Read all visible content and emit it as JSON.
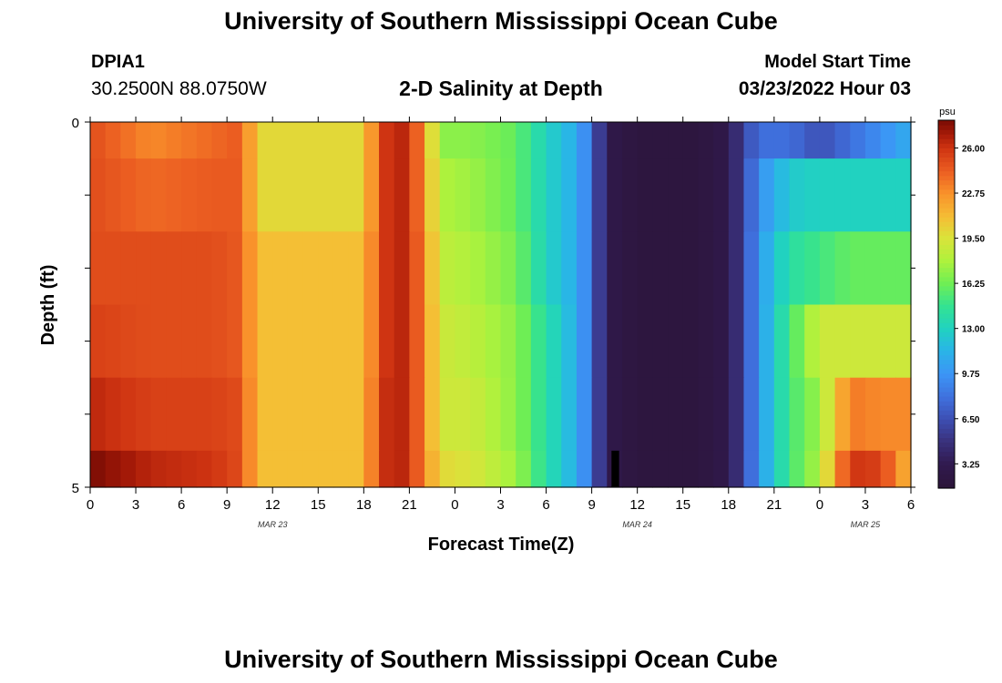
{
  "header": {
    "title": "University of Southern Mississippi Ocean Cube",
    "station": "DPIA1",
    "coords": "30.2500N  88.0750W",
    "subtitle": "2-D Salinity at Depth",
    "model_start_label": "Model Start Time",
    "model_start_value": "03/23/2022 Hour 03"
  },
  "footer": {
    "title": "University of Southern Mississippi Ocean Cube"
  },
  "chart_data": {
    "type": "heatmap",
    "xlabel": "Forecast Time(Z)",
    "ylabel": "Depth (ft)",
    "x_range_hours": [
      0,
      54
    ],
    "x_ticks": [
      "0",
      "3",
      "6",
      "9",
      "12",
      "15",
      "18",
      "21",
      "0",
      "3",
      "6",
      "9",
      "12",
      "15",
      "18",
      "21",
      "0",
      "3",
      "6"
    ],
    "date_labels": [
      {
        "label": "MAR 23",
        "hour": 12
      },
      {
        "label": "MAR 24",
        "hour": 36
      },
      {
        "label": "MAR 25",
        "hour": 51
      }
    ],
    "y_ticks": [
      "0",
      "5"
    ],
    "y_range_ft": [
      0,
      5
    ],
    "colorbar": {
      "unit": "psu",
      "range": [
        1.5,
        28.0
      ],
      "ticks": [
        "26.00",
        "22.75",
        "19.50",
        "16.25",
        "13.00",
        "9.75",
        "6.50",
        "3.25"
      ],
      "stops": [
        {
          "v": 1.5,
          "c": "#2b1438"
        },
        {
          "v": 3.25,
          "c": "#311a4f"
        },
        {
          "v": 5.0,
          "c": "#3a3380"
        },
        {
          "v": 6.5,
          "c": "#3d4fb3"
        },
        {
          "v": 8.0,
          "c": "#3f6fdc"
        },
        {
          "v": 9.75,
          "c": "#3c95f6"
        },
        {
          "v": 11.5,
          "c": "#29b6e6"
        },
        {
          "v": 13.0,
          "c": "#21d2c0"
        },
        {
          "v": 14.6,
          "c": "#33e293"
        },
        {
          "v": 16.25,
          "c": "#6eee55"
        },
        {
          "v": 17.9,
          "c": "#aef23d"
        },
        {
          "v": 19.5,
          "c": "#d9e43a"
        },
        {
          "v": 21.0,
          "c": "#f4bf35"
        },
        {
          "v": 22.75,
          "c": "#f9922b"
        },
        {
          "v": 24.3,
          "c": "#ec5f22"
        },
        {
          "v": 26.0,
          "c": "#cf3412"
        },
        {
          "v": 27.0,
          "c": "#a61a08"
        },
        {
          "v": 28.0,
          "c": "#7a0c04"
        }
      ]
    },
    "depth_bands": [
      {
        "from": 0.0,
        "to": 0.5
      },
      {
        "from": 0.5,
        "to": 1.5
      },
      {
        "from": 1.5,
        "to": 2.5
      },
      {
        "from": 2.5,
        "to": 3.5
      },
      {
        "from": 3.5,
        "to": 4.5
      },
      {
        "from": 4.5,
        "to": 5.0
      }
    ],
    "salinity_psu_by_depth": [
      {
        "hours": [
          0,
          4,
          8,
          10,
          11,
          14,
          18,
          19,
          20,
          21,
          22,
          23,
          25,
          28,
          30,
          32,
          33,
          34,
          36,
          38,
          40,
          42,
          43,
          44,
          46,
          48,
          50,
          52,
          54
        ],
        "psu": [
          25,
          23,
          24,
          24.5,
          20,
          20,
          20,
          25,
          27,
          26,
          22.5,
          17,
          17,
          16,
          13,
          11,
          8,
          3,
          2,
          2,
          2,
          3,
          6,
          8,
          8,
          6.5,
          8,
          9.5,
          11
        ]
      },
      {
        "hours": [
          0,
          4,
          8,
          10,
          11,
          14,
          18,
          19,
          20,
          21,
          22,
          23,
          25,
          28,
          30,
          32,
          33,
          34,
          36,
          38,
          40,
          42,
          43,
          44,
          46,
          48,
          50,
          52,
          54
        ],
        "psu": [
          25,
          24,
          24.5,
          24.5,
          20,
          20,
          20,
          25,
          27,
          26,
          22.5,
          18,
          17.5,
          16,
          13,
          11,
          8,
          3,
          2,
          2,
          2,
          3,
          6,
          9.5,
          12.5,
          13,
          13,
          13,
          13
        ]
      },
      {
        "hours": [
          0,
          4,
          8,
          10,
          11,
          14,
          18,
          19,
          20,
          21,
          22,
          23,
          25,
          28,
          30,
          32,
          33,
          34,
          36,
          38,
          40,
          42,
          43,
          44,
          46,
          48,
          50,
          52,
          54
        ],
        "psu": [
          25,
          25,
          25,
          24.5,
          21,
          21,
          21,
          25,
          27,
          26,
          23,
          18.5,
          18,
          16.5,
          13,
          11,
          8,
          3,
          2,
          2,
          2,
          3,
          6,
          10,
          14,
          15,
          16,
          16,
          16
        ]
      },
      {
        "hours": [
          0,
          4,
          8,
          10,
          11,
          14,
          18,
          19,
          20,
          21,
          22,
          23,
          25,
          28,
          30,
          32,
          33,
          34,
          36,
          38,
          40,
          42,
          43,
          44,
          46,
          48,
          50,
          52,
          54
        ],
        "psu": [
          25.5,
          25,
          25,
          24.5,
          21,
          21,
          21,
          25,
          27,
          26,
          23,
          19,
          18.5,
          17,
          14,
          11,
          8,
          3,
          2,
          2,
          2,
          3,
          6,
          10,
          15,
          19,
          19,
          19,
          19
        ]
      },
      {
        "hours": [
          0,
          4,
          8,
          10,
          11,
          14,
          18,
          19,
          20,
          21,
          22,
          23,
          25,
          28,
          30,
          32,
          33,
          34,
          36,
          38,
          40,
          42,
          43,
          44,
          46,
          48,
          50,
          52,
          54
        ],
        "psu": [
          26.5,
          25.5,
          25.5,
          25,
          21,
          21,
          21,
          25.5,
          27,
          26,
          23,
          19,
          19,
          17,
          14,
          11,
          8,
          3,
          2,
          2,
          2,
          3,
          6,
          10,
          15,
          17.5,
          23.5,
          23,
          23
        ]
      },
      {
        "hours": [
          0,
          4,
          8,
          10,
          11,
          14,
          18,
          19,
          20,
          21,
          22,
          23,
          25,
          28,
          30,
          32,
          33,
          34,
          36,
          38,
          40,
          42,
          43,
          44,
          46,
          48,
          50,
          52,
          54
        ],
        "psu": [
          28,
          26.5,
          26,
          25,
          21,
          21,
          21,
          25.5,
          27,
          26,
          23,
          20,
          19.5,
          17.5,
          14,
          11,
          8,
          3,
          2,
          2,
          2,
          3,
          6,
          10,
          15,
          18,
          26,
          25.5,
          21
        ]
      }
    ],
    "marker": {
      "hour_start": 34.3,
      "hour_end": 34.8,
      "depth_from": 4.5,
      "depth_to": 5.0,
      "color": "#000000"
    }
  }
}
